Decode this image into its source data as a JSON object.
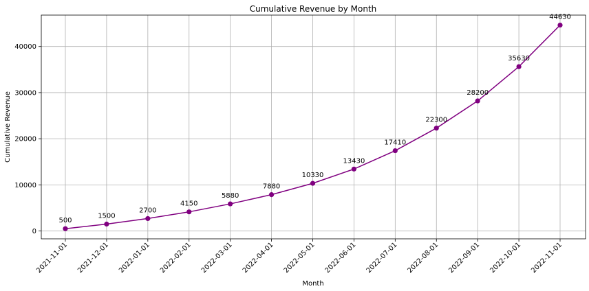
{
  "chart_data": {
    "type": "line",
    "title": "Cumulative Revenue by Month",
    "xlabel": "Month",
    "ylabel": "Cumulative Revenue",
    "x": [
      "2021-11-01",
      "2021-12-01",
      "2022-01-01",
      "2022-02-01",
      "2022-03-01",
      "2022-04-01",
      "2022-05-01",
      "2022-06-01",
      "2022-07-01",
      "2022-08-01",
      "2022-09-01",
      "2022-10-01",
      "2022-11-01"
    ],
    "series": [
      {
        "values": [
          500,
          1500,
          2700,
          4150,
          5880,
          7880,
          10330,
          13430,
          17410,
          22300,
          28200,
          35630,
          44630
        ]
      }
    ],
    "yticks": [
      0,
      10000,
      20000,
      30000,
      40000
    ],
    "ylim": [
      -1700,
      46800
    ],
    "grid": true,
    "color": "#800080"
  }
}
